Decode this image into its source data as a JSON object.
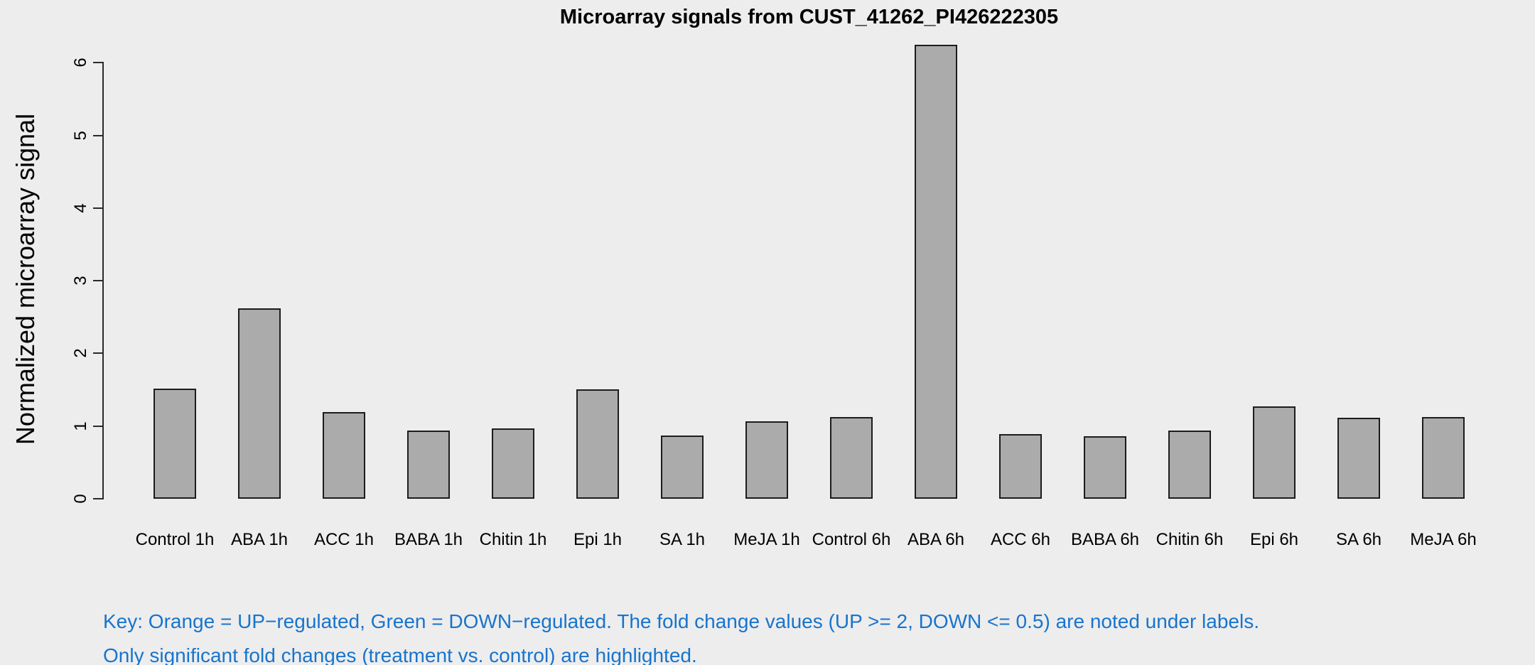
{
  "title": "Microarray signals from CUST_41262_PI426222305",
  "y_axis": {
    "label": "Normalized microarray signal",
    "ticks": [
      0,
      1,
      2,
      3,
      4,
      5,
      6
    ]
  },
  "key": {
    "line1": "Key: Orange = UP−regulated, Green = DOWN−regulated. The fold change values (UP >= 2, DOWN <= 0.5) are noted under labels.",
    "line2": "Only significant fold changes (treatment vs. control) are highlighted."
  },
  "colors": {
    "background": "#EDEDED",
    "bar_fill": "#ABABAB",
    "bar_border": "#1c1c1c",
    "axis": "#2a2a2a",
    "text": "#000000",
    "key_text": "#1874CD"
  },
  "chart_data": {
    "type": "bar",
    "title": "Microarray signals from CUST_41262_PI426222305",
    "xlabel": "",
    "ylabel": "Normalized microarray signal",
    "ylim": [
      0,
      6
    ],
    "yticks": [
      0,
      1,
      2,
      3,
      4,
      5,
      6
    ],
    "grid": false,
    "legend_position": "none",
    "categories": [
      "Control 1h",
      "ABA 1h",
      "ACC 1h",
      "BABA 1h",
      "Chitin 1h",
      "Epi 1h",
      "SA 1h",
      "MeJA 1h",
      "Control 6h",
      "ABA 6h",
      "ACC 6h",
      "BABA 6h",
      "Chitin 6h",
      "Epi 6h",
      "SA 6h",
      "MeJA 6h"
    ],
    "values": [
      1.52,
      2.62,
      1.19,
      0.94,
      0.97,
      1.51,
      0.87,
      1.07,
      1.12,
      6.25,
      0.89,
      0.86,
      0.94,
      1.27,
      1.11,
      1.12
    ],
    "annotations": [
      "Key: Orange = UP−regulated, Green = DOWN−regulated. The fold change values (UP >= 2, DOWN <= 0.5) are noted under labels.",
      "Only significant fold changes (treatment vs. control) are highlighted."
    ]
  }
}
